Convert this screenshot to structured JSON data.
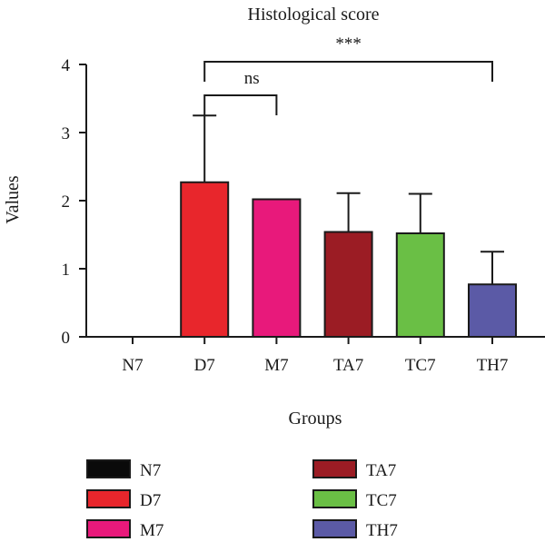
{
  "chart_data": {
    "type": "bar",
    "title": "Histological score",
    "xlabel": "Groups",
    "ylabel": "Values",
    "ylim": [
      0,
      4
    ],
    "yticks": [
      0,
      1,
      2,
      3,
      4
    ],
    "grid": false,
    "legend_position": "bottom",
    "categories": [
      "N7",
      "D7",
      "M7",
      "TA7",
      "TC7",
      "TH7"
    ],
    "values": [
      0,
      2.27,
      2.02,
      1.54,
      1.52,
      0.77
    ],
    "error_upper": [
      0,
      0.98,
      0,
      0.57,
      0.58,
      0.48
    ],
    "colors": [
      "#0a0a0a",
      "#e8262c",
      "#e8197b",
      "#9b1c24",
      "#6abf45",
      "#5b5aa6"
    ],
    "significance": [
      {
        "from": "D7",
        "to": "M7",
        "label": "ns"
      },
      {
        "from": "D7",
        "to": "TH7",
        "label": "***"
      }
    ],
    "legend": [
      "N7",
      "D7",
      "M7",
      "TA7",
      "TC7",
      "TH7"
    ]
  }
}
